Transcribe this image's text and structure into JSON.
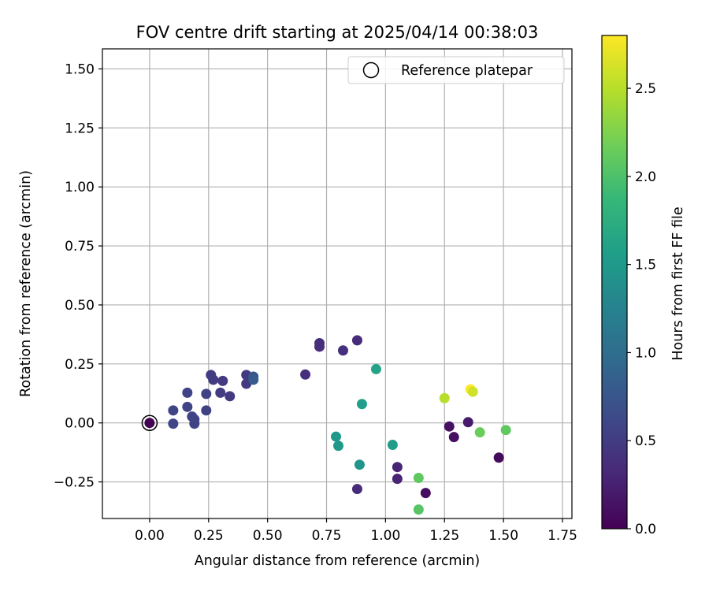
{
  "chart_data": {
    "type": "scatter",
    "title": "FOV centre drift starting at 2025/04/14 00:38:03",
    "xlabel": "Angular distance from reference (arcmin)",
    "ylabel": "Rotation from reference (arcmin)",
    "xlim": [
      -0.2,
      1.79
    ],
    "ylim": [
      -0.405,
      1.585
    ],
    "xticks": [
      "0.00",
      "0.25",
      "0.50",
      "0.75",
      "1.00",
      "1.25",
      "1.50",
      "1.75"
    ],
    "yticks": [
      "−0.25",
      "0.00",
      "0.25",
      "0.50",
      "0.75",
      "1.00",
      "1.25",
      "1.50"
    ],
    "grid": true,
    "legend": {
      "placement": "top-right",
      "entries": [
        {
          "label": "Reference platepar",
          "marker": "open-circle",
          "color": "#000000"
        }
      ]
    },
    "colorbar": {
      "label": "Hours from first FF file",
      "colormap": "viridis",
      "range": [
        0,
        2.8
      ],
      "ticks": [
        "0.0",
        "0.5",
        "1.0",
        "1.5",
        "2.0",
        "2.5"
      ]
    },
    "reference_point": {
      "x": 0.0,
      "y": 0.0
    },
    "series": [
      {
        "points": [
          {
            "x": 0.0,
            "y": 0.0,
            "c": 0.0
          },
          {
            "x": 0.1,
            "y": 0.053,
            "c": 0.58
          },
          {
            "x": 0.1,
            "y": -0.003,
            "c": 0.58
          },
          {
            "x": 0.16,
            "y": 0.128,
            "c": 0.57
          },
          {
            "x": 0.16,
            "y": 0.068,
            "c": 0.57
          },
          {
            "x": 0.18,
            "y": 0.027,
            "c": 0.57
          },
          {
            "x": 0.19,
            "y": 0.015,
            "c": 0.57
          },
          {
            "x": 0.19,
            "y": -0.003,
            "c": 0.57
          },
          {
            "x": 0.24,
            "y": 0.123,
            "c": 0.56
          },
          {
            "x": 0.24,
            "y": 0.053,
            "c": 0.56
          },
          {
            "x": 0.26,
            "y": 0.203,
            "c": 0.5
          },
          {
            "x": 0.27,
            "y": 0.183,
            "c": 0.5
          },
          {
            "x": 0.3,
            "y": 0.128,
            "c": 0.5
          },
          {
            "x": 0.31,
            "y": 0.178,
            "c": 0.48
          },
          {
            "x": 0.34,
            "y": 0.113,
            "c": 0.48
          },
          {
            "x": 0.41,
            "y": 0.203,
            "c": 0.48
          },
          {
            "x": 0.41,
            "y": 0.166,
            "c": 0.48
          },
          {
            "x": 0.44,
            "y": 0.196,
            "c": 0.75
          },
          {
            "x": 0.44,
            "y": 0.183,
            "c": 0.8
          },
          {
            "x": 0.66,
            "y": 0.205,
            "c": 0.38
          },
          {
            "x": 0.72,
            "y": 0.338,
            "c": 0.38
          },
          {
            "x": 0.72,
            "y": 0.323,
            "c": 0.38
          },
          {
            "x": 0.82,
            "y": 0.307,
            "c": 0.38
          },
          {
            "x": 0.88,
            "y": 0.35,
            "c": 0.35
          },
          {
            "x": 0.79,
            "y": -0.058,
            "c": 1.5
          },
          {
            "x": 0.8,
            "y": -0.097,
            "c": 1.5
          },
          {
            "x": 0.89,
            "y": -0.177,
            "c": 1.45
          },
          {
            "x": 0.88,
            "y": -0.28,
            "c": 0.35
          },
          {
            "x": 0.9,
            "y": 0.08,
            "c": 1.55
          },
          {
            "x": 0.96,
            "y": 0.228,
            "c": 1.62
          },
          {
            "x": 1.03,
            "y": -0.093,
            "c": 1.53
          },
          {
            "x": 1.05,
            "y": -0.187,
            "c": 0.28
          },
          {
            "x": 1.05,
            "y": -0.237,
            "c": 0.28
          },
          {
            "x": 1.14,
            "y": -0.233,
            "c": 2.1
          },
          {
            "x": 1.14,
            "y": -0.367,
            "c": 2.05
          },
          {
            "x": 1.17,
            "y": -0.297,
            "c": 0.1
          },
          {
            "x": 1.25,
            "y": 0.105,
            "c": 2.5
          },
          {
            "x": 1.27,
            "y": -0.015,
            "c": 0.12
          },
          {
            "x": 1.29,
            "y": -0.06,
            "c": 0.12
          },
          {
            "x": 1.35,
            "y": 0.003,
            "c": 0.2
          },
          {
            "x": 1.36,
            "y": 0.142,
            "c": 2.8
          },
          {
            "x": 1.37,
            "y": 0.132,
            "c": 2.6
          },
          {
            "x": 1.4,
            "y": -0.04,
            "c": 2.15
          },
          {
            "x": 1.48,
            "y": -0.147,
            "c": 0.07
          },
          {
            "x": 1.51,
            "y": -0.03,
            "c": 2.1
          }
        ]
      }
    ]
  }
}
